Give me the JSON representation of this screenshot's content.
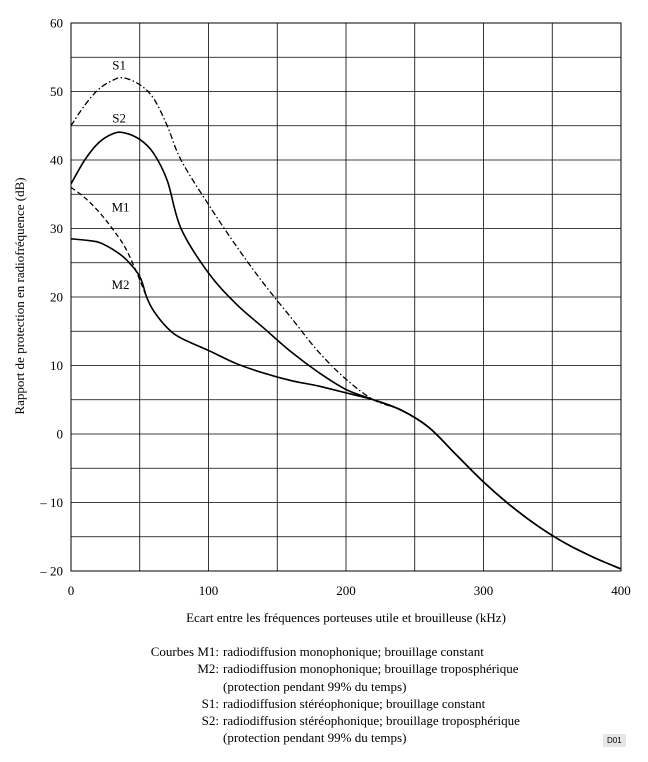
{
  "chart_data": {
    "type": "line",
    "xlabel": "Ecart entre les fréquences porteuses utile et brouilleuse (kHz)",
    "ylabel": "Rapport de protection en radiofréquence (dB)",
    "xlim": [
      0,
      400
    ],
    "ylim": [
      -20,
      60
    ],
    "x_ticks": [
      "0",
      "100",
      "200",
      "300",
      "400"
    ],
    "y_ticks": [
      "60",
      "50",
      "40",
      "30",
      "20",
      "10",
      "0",
      "– 10",
      "– 20"
    ],
    "grid": true,
    "series": [
      {
        "name": "M1",
        "style": "dashed",
        "points": [
          [
            0,
            36
          ],
          [
            10,
            34.5
          ],
          [
            20,
            32.5
          ],
          [
            30,
            30
          ],
          [
            40,
            27
          ],
          [
            50,
            22.5
          ],
          [
            55,
            20
          ],
          [
            60,
            18
          ],
          [
            70,
            15.5
          ],
          [
            80,
            14
          ],
          [
            100,
            12.2
          ],
          [
            120,
            10.3
          ],
          [
            140,
            8.9
          ],
          [
            160,
            7.8
          ],
          [
            180,
            7
          ],
          [
            200,
            6
          ],
          [
            220,
            5
          ],
          [
            240,
            3.5
          ],
          [
            260,
            1
          ],
          [
            280,
            -3
          ],
          [
            300,
            -7
          ],
          [
            320,
            -10.5
          ],
          [
            340,
            -13.5
          ],
          [
            360,
            -16
          ],
          [
            380,
            -18
          ],
          [
            400,
            -19.7
          ]
        ]
      },
      {
        "name": "M2",
        "style": "solid",
        "points": [
          [
            0,
            28.5
          ],
          [
            10,
            28.3
          ],
          [
            20,
            28
          ],
          [
            30,
            27
          ],
          [
            40,
            25.5
          ],
          [
            50,
            23
          ],
          [
            55,
            20
          ],
          [
            60,
            18
          ],
          [
            70,
            15.5
          ],
          [
            80,
            14
          ],
          [
            100,
            12.2
          ],
          [
            120,
            10.3
          ],
          [
            140,
            8.9
          ],
          [
            160,
            7.8
          ],
          [
            180,
            7
          ],
          [
            200,
            6
          ],
          [
            220,
            5
          ],
          [
            240,
            3.5
          ],
          [
            260,
            1
          ],
          [
            280,
            -3
          ],
          [
            300,
            -7
          ],
          [
            320,
            -10.5
          ],
          [
            340,
            -13.5
          ],
          [
            360,
            -16
          ],
          [
            380,
            -18
          ],
          [
            400,
            -19.7
          ]
        ]
      },
      {
        "name": "S1",
        "style": "dashdot",
        "points": [
          [
            0,
            45
          ],
          [
            10,
            48
          ],
          [
            20,
            50.3
          ],
          [
            30,
            51.6
          ],
          [
            38,
            52
          ],
          [
            50,
            51
          ],
          [
            60,
            49
          ],
          [
            70,
            45
          ],
          [
            80,
            40
          ],
          [
            100,
            33.5
          ],
          [
            120,
            27.5
          ],
          [
            140,
            22
          ],
          [
            160,
            17
          ],
          [
            180,
            12
          ],
          [
            200,
            8
          ],
          [
            220,
            5
          ],
          [
            240,
            3.5
          ],
          [
            260,
            1
          ],
          [
            280,
            -3
          ],
          [
            300,
            -7
          ],
          [
            320,
            -10.5
          ],
          [
            340,
            -13.5
          ],
          [
            360,
            -16
          ],
          [
            380,
            -18
          ],
          [
            400,
            -19.7
          ]
        ]
      },
      {
        "name": "S2",
        "style": "solid",
        "points": [
          [
            0,
            36.5
          ],
          [
            10,
            40
          ],
          [
            20,
            42.5
          ],
          [
            30,
            43.8
          ],
          [
            38,
            44
          ],
          [
            50,
            43
          ],
          [
            60,
            41
          ],
          [
            70,
            37
          ],
          [
            80,
            30
          ],
          [
            100,
            23.5
          ],
          [
            120,
            19
          ],
          [
            140,
            15.5
          ],
          [
            160,
            12
          ],
          [
            180,
            9
          ],
          [
            200,
            6.5
          ],
          [
            220,
            5
          ],
          [
            240,
            3.5
          ],
          [
            260,
            1
          ],
          [
            280,
            -3
          ],
          [
            300,
            -7
          ],
          [
            320,
            -10.5
          ],
          [
            340,
            -13.5
          ],
          [
            360,
            -16
          ],
          [
            380,
            -18
          ],
          [
            400,
            -19.7
          ]
        ]
      }
    ],
    "curve_labels": [
      {
        "text": "S1",
        "x": 35,
        "y": 53.2
      },
      {
        "text": "S2",
        "x": 35,
        "y": 45.5
      },
      {
        "text": "M1",
        "x": 36,
        "y": 32.5
      },
      {
        "text": "M2",
        "x": 36,
        "y": 21.2
      }
    ]
  },
  "legend": {
    "rows": [
      {
        "key": "Courbes M1:",
        "desc": "radiodiffusion monophonique; brouillage constant"
      },
      {
        "key": "M2:",
        "desc": "radiodiffusion monophonique; brouillage troposphérique"
      },
      {
        "key": "",
        "desc": "(protection pendant 99% du temps)"
      },
      {
        "key": "S1:",
        "desc": "radiodiffusion stéréophonique; brouillage constant"
      },
      {
        "key": "S2:",
        "desc": "radiodiffusion stéréophonique; brouillage troposphérique"
      },
      {
        "key": "",
        "desc": "(protection pendant 99% du temps)"
      }
    ]
  },
  "figure_code": "D01"
}
